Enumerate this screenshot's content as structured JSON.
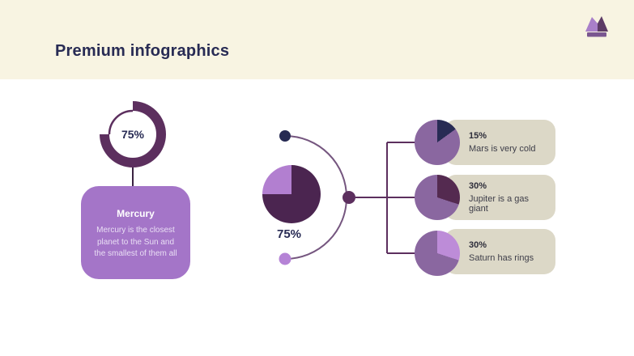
{
  "header": {
    "title": "Premium infographics"
  },
  "left": {
    "donut_label": "75%",
    "card": {
      "title": "Mercury",
      "description": "Mercury is the closest planet to the Sun and the smallest of them all"
    }
  },
  "center": {
    "pie_label": "75%"
  },
  "right_items": [
    {
      "percent": "15%",
      "text": "Mars is very cold",
      "value": 15,
      "slice_color": "#282b54"
    },
    {
      "percent": "30%",
      "text": "Jupiter is a gas giant",
      "value": 30,
      "slice_color": "#542a50"
    },
    {
      "percent": "30%",
      "text": "Saturn has rings",
      "value": 30,
      "slice_color": "#bd8cd8"
    }
  ],
  "colors": {
    "header_bg": "#f8f4e2",
    "body_bg": "#ffffff",
    "title_text": "#282b54",
    "donut_ring": "#5c2f5e",
    "stem": "#3a2342",
    "card_bg": "#a475c8",
    "card_text": "#ffffff",
    "card_body_text": "#e9def4",
    "pie_dark": "#4b2550",
    "pie_light": "#b27fd0",
    "pie_body": "#8a67a0",
    "box_bg": "#dcd8c7",
    "box_pct_text": "#2d2d3a",
    "box_desc_text": "#3e3e49",
    "connector": "#5c2f5e",
    "arc_line": "#75567f",
    "dot_top": "#262a52",
    "dot_mid": "#5c2f5e",
    "dot_bottom": "#b583d6",
    "crown_light": "#a97fc9",
    "crown_dark": "#5d3b66",
    "crown_band": "#7a5690"
  },
  "chart_data": [
    {
      "type": "pie",
      "subtype": "donut",
      "label": "75%",
      "value": 75,
      "remainder": 25,
      "linked_card": "Mercury"
    },
    {
      "type": "pie",
      "label": "75%",
      "value": 75,
      "remainder": 25
    },
    {
      "type": "pie",
      "label": "15%",
      "value": 15,
      "remainder": 85,
      "caption": "Mars is very cold"
    },
    {
      "type": "pie",
      "label": "30%",
      "value": 30,
      "remainder": 70,
      "caption": "Jupiter is a gas giant"
    },
    {
      "type": "pie",
      "label": "30%",
      "value": 30,
      "remainder": 70,
      "caption": "Saturn has rings"
    }
  ]
}
